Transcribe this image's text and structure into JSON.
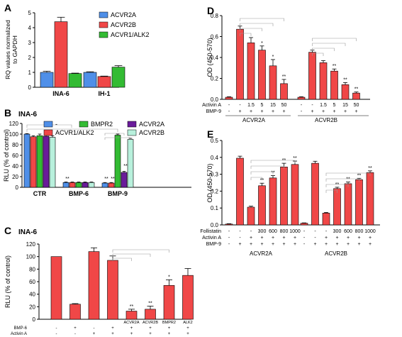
{
  "chart_data": [
    {
      "panel": "A",
      "type": "bar",
      "title": "",
      "ylabel": "RQ values normalized to GAPDH",
      "ylim": [
        0,
        5
      ],
      "yticks": [
        0,
        1,
        2,
        3,
        4,
        5
      ],
      "categories": [
        "INA-6",
        "IH-1"
      ],
      "series": [
        {
          "name": "ACVR2A",
          "color": "#4f8fe8",
          "values": [
            1.0,
            1.0
          ],
          "errors": [
            0.08,
            0.04
          ]
        },
        {
          "name": "ACVR2B",
          "color": "#f04747",
          "values": [
            4.4,
            0.72
          ],
          "errors": [
            0.3,
            0.03
          ]
        },
        {
          "name": "ACVR1/ALK2",
          "color": "#33bb33",
          "values": [
            0.92,
            1.35
          ],
          "errors": [
            0.03,
            0.1
          ]
        }
      ],
      "legend": "top-right"
    },
    {
      "panel": "B",
      "type": "bar",
      "title": "INA-6",
      "ylabel": "RLU (% of control)",
      "ylim": [
        0,
        120
      ],
      "yticks": [
        0,
        20,
        40,
        60,
        80,
        100,
        120
      ],
      "categories": [
        "CTR",
        "BMP-6",
        "BMP-9"
      ],
      "series": [
        {
          "name": "-",
          "color": "#4f8fe8",
          "values": [
            100,
            9,
            8
          ],
          "errors": [
            1,
            1,
            1
          ]
        },
        {
          "name": "ACVR1/ALK2",
          "color": "#f04747",
          "values": [
            95,
            9,
            8
          ],
          "errors": [
            2,
            1,
            1
          ]
        },
        {
          "name": "BMPR2",
          "color": "#33bb33",
          "values": [
            97,
            9,
            98
          ],
          "errors": [
            3,
            1,
            2
          ]
        },
        {
          "name": "ACVR2A",
          "color": "#6a1b9a",
          "values": [
            96,
            9,
            28
          ],
          "errors": [
            3,
            1,
            2
          ]
        },
        {
          "name": "ACVR2B",
          "color": "#b8f0dc",
          "values": [
            94,
            9,
            90
          ],
          "errors": [
            3,
            1,
            2
          ]
        }
      ],
      "annotations": [
        "**",
        "**",
        "**",
        "**",
        "**"
      ],
      "legend": "top"
    },
    {
      "panel": "C",
      "type": "bar",
      "title": "INA-6",
      "ylabel": "RLU (% of control)",
      "ylim": [
        0,
        120
      ],
      "yticks": [
        0,
        20,
        40,
        60,
        80,
        100,
        120
      ],
      "row_labels": [
        "BMP-6",
        "Activin A"
      ],
      "bars": [
        {
          "bmp6": "-",
          "activin": "-",
          "label": "",
          "value": 100,
          "error": 0,
          "sig": ""
        },
        {
          "bmp6": "+",
          "activin": "-",
          "label": "",
          "value": 24,
          "error": 1,
          "sig": ""
        },
        {
          "bmp6": "-",
          "activin": "+",
          "label": "",
          "value": 108,
          "error": 6,
          "sig": ""
        },
        {
          "bmp6": "+",
          "activin": "+",
          "label": "",
          "value": 94,
          "error": 7,
          "sig": ""
        },
        {
          "bmp6": "+",
          "activin": "+",
          "label": "ACVR2A",
          "value": 13,
          "error": 3,
          "sig": "**"
        },
        {
          "bmp6": "+",
          "activin": "+",
          "label": "ACVR2B",
          "value": 16,
          "error": 5,
          "sig": "**"
        },
        {
          "bmp6": "+",
          "activin": "+",
          "label": "BMPR2",
          "value": 54,
          "error": 9,
          "sig": "*"
        },
        {
          "bmp6": "+",
          "activin": "+",
          "label": "ALK2",
          "value": 70,
          "error": 11,
          "sig": ""
        }
      ],
      "color": "#f04747"
    },
    {
      "panel": "D",
      "type": "bar",
      "title": "",
      "ylabel": "OD (450-570)",
      "ylim": [
        0,
        0.8
      ],
      "yticks": [
        0.0,
        0.2,
        0.4,
        0.6,
        0.8
      ],
      "row_labels": [
        "Activin A",
        "BMP-9"
      ],
      "groups": [
        {
          "name": "ACVR2A",
          "bars": [
            {
              "activin": "-",
              "bmp9": "-",
              "value": 0.02,
              "error": 0.005,
              "sig": ""
            },
            {
              "activin": "-",
              "bmp9": "+",
              "value": 0.67,
              "error": 0.03,
              "sig": ""
            },
            {
              "activin": "1.5",
              "bmp9": "+",
              "value": 0.54,
              "error": 0.05,
              "sig": ""
            },
            {
              "activin": "5",
              "bmp9": "+",
              "value": 0.47,
              "error": 0.04,
              "sig": "*"
            },
            {
              "activin": "15",
              "bmp9": "+",
              "value": 0.32,
              "error": 0.06,
              "sig": "*"
            },
            {
              "activin": "50",
              "bmp9": "+",
              "value": 0.15,
              "error": 0.04,
              "sig": "**"
            }
          ]
        },
        {
          "name": "ACVR2B",
          "bars": [
            {
              "activin": "-",
              "bmp9": "-",
              "value": 0.02,
              "error": 0.005,
              "sig": ""
            },
            {
              "activin": "-",
              "bmp9": "+",
              "value": 0.45,
              "error": 0.02,
              "sig": ""
            },
            {
              "activin": "1.5",
              "bmp9": "+",
              "value": 0.35,
              "error": 0.02,
              "sig": ""
            },
            {
              "activin": "5",
              "bmp9": "+",
              "value": 0.27,
              "error": 0.02,
              "sig": "**"
            },
            {
              "activin": "15",
              "bmp9": "+",
              "value": 0.14,
              "error": 0.02,
              "sig": "**"
            },
            {
              "activin": "50",
              "bmp9": "+",
              "value": 0.06,
              "error": 0.01,
              "sig": "**"
            }
          ]
        }
      ],
      "color": "#f04747"
    },
    {
      "panel": "E",
      "type": "bar",
      "title": "",
      "ylabel": "OD (450-570)",
      "ylim": [
        0,
        0.5
      ],
      "yticks": [
        0.0,
        0.1,
        0.2,
        0.3,
        0.4,
        0.5
      ],
      "row_labels": [
        "Follistatin",
        "Activin A",
        "BMP-9"
      ],
      "groups": [
        {
          "name": "ACVR2A",
          "bars": [
            {
              "follistatin": "-",
              "activin": "-",
              "bmp9": "-",
              "value": 0.005,
              "error": 0.002,
              "sig": ""
            },
            {
              "follistatin": "-",
              "activin": "-",
              "bmp9": "+",
              "value": 0.395,
              "error": 0.012,
              "sig": ""
            },
            {
              "follistatin": "-",
              "activin": "+",
              "bmp9": "+",
              "value": 0.105,
              "error": 0.006,
              "sig": ""
            },
            {
              "follistatin": "300",
              "activin": "+",
              "bmp9": "+",
              "value": 0.232,
              "error": 0.015,
              "sig": "**"
            },
            {
              "follistatin": "600",
              "activin": "+",
              "bmp9": "+",
              "value": 0.278,
              "error": 0.014,
              "sig": "**"
            },
            {
              "follistatin": "800",
              "activin": "+",
              "bmp9": "+",
              "value": 0.343,
              "error": 0.022,
              "sig": "**"
            },
            {
              "follistatin": "1000",
              "activin": "+",
              "bmp9": "+",
              "value": 0.358,
              "error": 0.02,
              "sig": "**"
            }
          ]
        },
        {
          "name": "ACVR2B",
          "bars": [
            {
              "follistatin": "-",
              "activin": "-",
              "bmp9": "-",
              "value": 0.01,
              "error": 0.002,
              "sig": ""
            },
            {
              "follistatin": "-",
              "activin": "-",
              "bmp9": "+",
              "value": 0.365,
              "error": 0.012,
              "sig": ""
            },
            {
              "follistatin": "-",
              "activin": "+",
              "bmp9": "+",
              "value": 0.07,
              "error": 0.004,
              "sig": ""
            },
            {
              "follistatin": "300",
              "activin": "+",
              "bmp9": "+",
              "value": 0.215,
              "error": 0.008,
              "sig": "**"
            },
            {
              "follistatin": "600",
              "activin": "+",
              "bmp9": "+",
              "value": 0.244,
              "error": 0.01,
              "sig": "**"
            },
            {
              "follistatin": "800",
              "activin": "+",
              "bmp9": "+",
              "value": 0.268,
              "error": 0.008,
              "sig": "**"
            },
            {
              "follistatin": "1000",
              "activin": "+",
              "bmp9": "+",
              "value": 0.31,
              "error": 0.01,
              "sig": "**"
            }
          ]
        }
      ],
      "color": "#f04747"
    }
  ],
  "panel_labels": [
    "A",
    "B",
    "C",
    "D",
    "E"
  ]
}
